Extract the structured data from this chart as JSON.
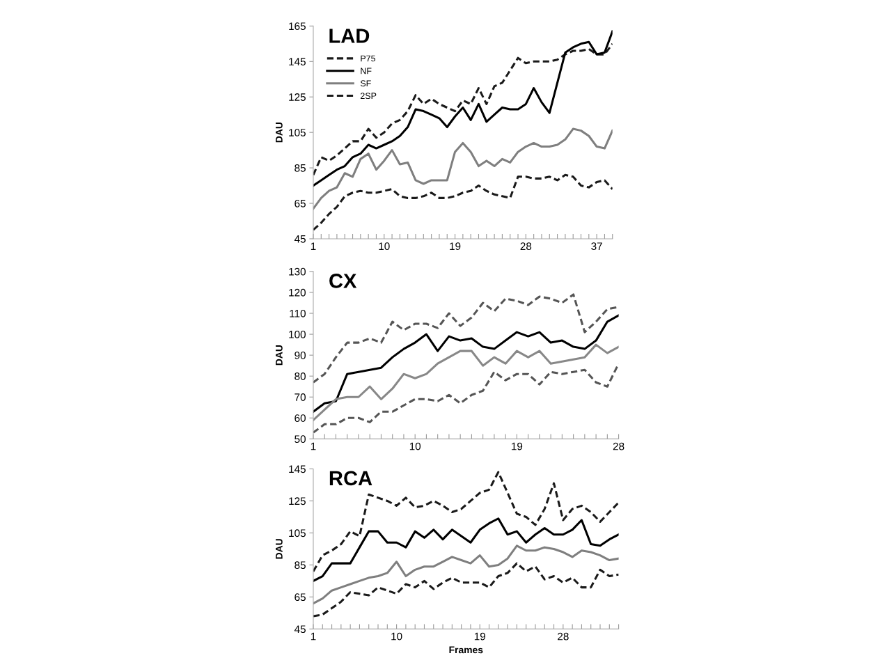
{
  "chart_data": [
    {
      "type": "line",
      "title": "LAD",
      "ylabel": "DAU",
      "legend": "top left",
      "x": [
        1,
        2,
        3,
        4,
        5,
        6,
        7,
        8,
        9,
        10,
        11,
        12,
        13,
        14,
        15,
        16,
        17,
        18,
        19,
        20,
        21,
        22,
        23,
        24,
        25,
        26,
        27,
        28,
        29,
        30,
        31,
        32,
        33,
        34,
        35,
        36,
        37,
        38,
        39
      ],
      "xlim": [
        1,
        39
      ],
      "xticks": [
        1,
        {
          "value": 2,
          "label": null
        },
        {
          "value": 3,
          "label": null
        },
        {
          "value": 4,
          "label": null
        },
        {
          "value": 5,
          "label": null
        },
        {
          "value": 6,
          "label": null
        },
        {
          "value": 7,
          "label": null
        },
        {
          "value": 8,
          "label": null
        },
        {
          "value": 9,
          "label": null
        },
        10,
        {
          "value": 11,
          "label": null
        },
        {
          "value": 12,
          "label": null
        },
        {
          "value": 13,
          "label": null
        },
        {
          "value": 14,
          "label": null
        },
        {
          "value": 15,
          "label": null
        },
        {
          "value": 16,
          "label": null
        },
        {
          "value": 17,
          "label": null
        },
        {
          "value": 18,
          "label": null
        },
        19,
        {
          "value": 20,
          "label": null
        },
        {
          "value": 21,
          "label": null
        },
        {
          "value": 22,
          "label": null
        },
        {
          "value": 23,
          "label": null
        },
        {
          "value": 24,
          "label": null
        },
        {
          "value": 25,
          "label": null
        },
        {
          "value": 26,
          "label": null
        },
        {
          "value": 27,
          "label": null
        },
        28,
        {
          "value": 29,
          "label": null
        },
        {
          "value": 30,
          "label": null
        },
        {
          "value": 31,
          "label": null
        },
        {
          "value": 32,
          "label": null
        },
        {
          "value": 33,
          "label": null
        },
        {
          "value": 34,
          "label": null
        },
        {
          "value": 35,
          "label": null
        },
        {
          "value": 36,
          "label": null
        },
        37,
        {
          "value": 38,
          "label": null
        },
        {
          "value": 39,
          "label": null
        }
      ],
      "ylim": [
        45,
        165
      ],
      "yticks": [
        45,
        65,
        85,
        105,
        125,
        145,
        165
      ],
      "series": [
        {
          "name": "P75",
          "color": "#1a1a1a",
          "line_style": "dashed",
          "values": [
            81,
            91,
            89,
            92,
            96,
            100,
            100,
            107,
            102,
            105,
            110,
            112,
            117,
            126,
            121,
            124,
            121,
            119,
            117,
            123,
            121,
            130,
            121,
            131,
            133,
            140,
            147,
            144,
            145,
            145,
            145,
            146,
            149,
            151,
            151,
            152,
            149,
            149,
            155
          ]
        },
        {
          "name": "NF",
          "color": "#000000",
          "line_style": "solid",
          "values": [
            75,
            78,
            81,
            84,
            86,
            91,
            93,
            98,
            96,
            98,
            100,
            103,
            108,
            118,
            117,
            115,
            113,
            108,
            114,
            119,
            112,
            121,
            111,
            115,
            119,
            118,
            118,
            121,
            130,
            122,
            116,
            133,
            150,
            153,
            155,
            156,
            149,
            150,
            162
          ]
        },
        {
          "name": "SF",
          "color": "#7f7f7f",
          "line_style": "solid",
          "values": [
            62,
            68,
            72,
            74,
            82,
            80,
            90,
            93,
            84,
            89,
            95,
            87,
            88,
            78,
            76,
            78,
            78,
            78,
            94,
            99,
            94,
            86,
            89,
            86,
            90,
            88,
            94,
            97,
            99,
            97,
            97,
            98,
            101,
            107,
            106,
            103,
            97,
            96,
            106
          ]
        },
        {
          "name": "2SP",
          "color": "#1a1a1a",
          "line_style": "dashed",
          "values": [
            50,
            54,
            59,
            63,
            69,
            71,
            72,
            71,
            71,
            72,
            73,
            69,
            68,
            68,
            69,
            71,
            68,
            68,
            69,
            71,
            72,
            75,
            72,
            70,
            69,
            68,
            80,
            80,
            79,
            79,
            80,
            78,
            81,
            80,
            75,
            74,
            77,
            78,
            73
          ]
        }
      ]
    },
    {
      "type": "line",
      "title": "CX",
      "ylabel": "DAU",
      "x": [
        1,
        2,
        3,
        4,
        5,
        6,
        7,
        8,
        9,
        10,
        11,
        12,
        13,
        14,
        15,
        16,
        17,
        18,
        19,
        20,
        21,
        22,
        23,
        24,
        25,
        26,
        27,
        28
      ],
      "xlim": [
        1,
        28
      ],
      "xticks": [
        1,
        {
          "value": 2,
          "label": null
        },
        {
          "value": 3,
          "label": null
        },
        {
          "value": 4,
          "label": null
        },
        {
          "value": 5,
          "label": null
        },
        {
          "value": 6,
          "label": null
        },
        {
          "value": 7,
          "label": null
        },
        {
          "value": 8,
          "label": null
        },
        {
          "value": 9,
          "label": null
        },
        10,
        {
          "value": 11,
          "label": null
        },
        {
          "value": 12,
          "label": null
        },
        {
          "value": 13,
          "label": null
        },
        {
          "value": 14,
          "label": null
        },
        {
          "value": 15,
          "label": null
        },
        {
          "value": 16,
          "label": null
        },
        {
          "value": 17,
          "label": null
        },
        {
          "value": 18,
          "label": null
        },
        19,
        {
          "value": 20,
          "label": null
        },
        {
          "value": 21,
          "label": null
        },
        {
          "value": 22,
          "label": null
        },
        {
          "value": 23,
          "label": null
        },
        {
          "value": 24,
          "label": null
        },
        {
          "value": 25,
          "label": null
        },
        {
          "value": 26,
          "label": null
        },
        {
          "value": 27,
          "label": null
        },
        28
      ],
      "ylim": [
        50,
        130
      ],
      "yticks": [
        50,
        60,
        70,
        80,
        90,
        100,
        110,
        120,
        130
      ],
      "series": [
        {
          "color": "#555555",
          "line_style": "dashed",
          "values": [
            77,
            81,
            89,
            96,
            96,
            98,
            96,
            106,
            102,
            105,
            105,
            103,
            110,
            104,
            108,
            115,
            111,
            117,
            116,
            114,
            118,
            117,
            115,
            119,
            101,
            106,
            112,
            113
          ]
        },
        {
          "color": "#000000",
          "line_style": "solid",
          "values": [
            63,
            67,
            68,
            81,
            82,
            83,
            84,
            89,
            93,
            96,
            100,
            92,
            99,
            97,
            98,
            94,
            93,
            97,
            101,
            99,
            101,
            96,
            97,
            94,
            93,
            97,
            106,
            109
          ]
        },
        {
          "color": "#888888",
          "line_style": "solid",
          "values": [
            59,
            64,
            69,
            70,
            70,
            75,
            69,
            74,
            81,
            79,
            81,
            86,
            89,
            92,
            92,
            85,
            89,
            86,
            92,
            89,
            92,
            86,
            87,
            88,
            89,
            95,
            91,
            94
          ]
        },
        {
          "color": "#555555",
          "line_style": "dashed",
          "values": [
            53,
            57,
            57,
            60,
            60,
            58,
            63,
            63,
            66,
            69,
            69,
            68,
            71,
            67,
            71,
            73,
            82,
            78,
            81,
            81,
            76,
            82,
            81,
            82,
            83,
            77,
            75,
            86
          ]
        }
      ]
    },
    {
      "type": "line",
      "title": "RCA",
      "ylabel": "DAU",
      "xlabel": "Frames",
      "x": [
        1,
        2,
        3,
        4,
        5,
        6,
        7,
        8,
        9,
        10,
        11,
        12,
        13,
        14,
        15,
        16,
        17,
        18,
        19,
        20,
        21,
        22,
        23,
        24,
        25,
        26,
        27,
        28,
        29,
        30,
        31,
        32,
        33,
        34
      ],
      "xlim": [
        1,
        34
      ],
      "xticks": [
        1,
        {
          "value": 2,
          "label": null
        },
        {
          "value": 3,
          "label": null
        },
        {
          "value": 4,
          "label": null
        },
        {
          "value": 5,
          "label": null
        },
        {
          "value": 6,
          "label": null
        },
        {
          "value": 7,
          "label": null
        },
        {
          "value": 8,
          "label": null
        },
        {
          "value": 9,
          "label": null
        },
        10,
        {
          "value": 11,
          "label": null
        },
        {
          "value": 12,
          "label": null
        },
        {
          "value": 13,
          "label": null
        },
        {
          "value": 14,
          "label": null
        },
        {
          "value": 15,
          "label": null
        },
        {
          "value": 16,
          "label": null
        },
        {
          "value": 17,
          "label": null
        },
        {
          "value": 18,
          "label": null
        },
        19,
        {
          "value": 20,
          "label": null
        },
        {
          "value": 21,
          "label": null
        },
        {
          "value": 22,
          "label": null
        },
        {
          "value": 23,
          "label": null
        },
        {
          "value": 24,
          "label": null
        },
        {
          "value": 25,
          "label": null
        },
        {
          "value": 26,
          "label": null
        },
        {
          "value": 27,
          "label": null
        },
        28,
        {
          "value": 29,
          "label": null
        },
        {
          "value": 30,
          "label": null
        },
        {
          "value": 31,
          "label": null
        },
        {
          "value": 32,
          "label": null
        },
        {
          "value": 33,
          "label": null
        },
        {
          "value": 34,
          "label": null
        }
      ],
      "ylim": [
        45,
        145
      ],
      "yticks": [
        45,
        65,
        85,
        105,
        125,
        145
      ],
      "series": [
        {
          "color": "#1a1a1a",
          "line_style": "dashed",
          "values": [
            81,
            91,
            94,
            98,
            106,
            103,
            129,
            127,
            125,
            122,
            127,
            121,
            122,
            125,
            122,
            118,
            120,
            125,
            130,
            132,
            143,
            130,
            117,
            115,
            110,
            120,
            136,
            113,
            120,
            122,
            118,
            112,
            118,
            124
          ]
        },
        {
          "color": "#000000",
          "line_style": "solid",
          "values": [
            75,
            78,
            86,
            86,
            86,
            96,
            106,
            106,
            99,
            99,
            96,
            106,
            102,
            107,
            101,
            107,
            103,
            99,
            107,
            111,
            114,
            104,
            106,
            99,
            104,
            108,
            104,
            104,
            107,
            113,
            98,
            97,
            101,
            104
          ]
        },
        {
          "color": "#7f7f7f",
          "line_style": "solid",
          "values": [
            61,
            64,
            69,
            71,
            73,
            75,
            77,
            78,
            80,
            87,
            78,
            82,
            84,
            84,
            87,
            90,
            88,
            86,
            91,
            84,
            85,
            89,
            97,
            94,
            94,
            96,
            95,
            93,
            90,
            94,
            93,
            91,
            88,
            89
          ]
        },
        {
          "color": "#1a1a1a",
          "line_style": "dashed",
          "values": [
            53,
            54,
            58,
            62,
            68,
            67,
            66,
            71,
            69,
            67,
            73,
            71,
            75,
            70,
            74,
            77,
            74,
            74,
            74,
            71,
            78,
            80,
            86,
            81,
            84,
            76,
            78,
            74,
            77,
            71,
            71,
            82,
            78,
            79
          ]
        }
      ]
    }
  ]
}
